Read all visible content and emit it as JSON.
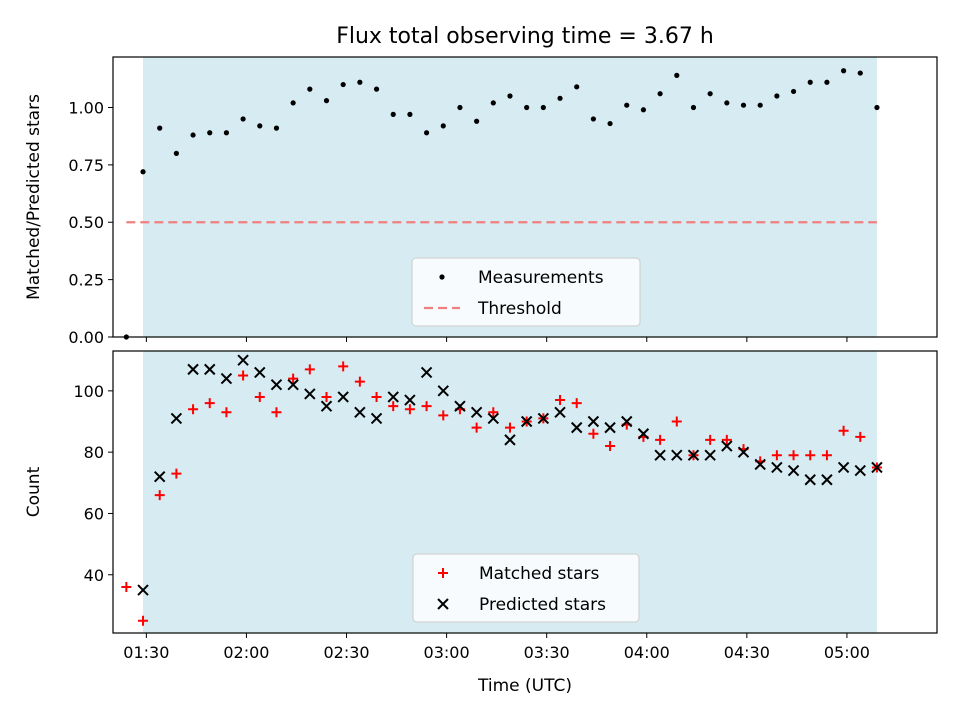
{
  "chart_data": {
    "title": "Flux total observing time = 3.67 h",
    "xlabel": "Time (UTC)",
    "x_range": [
      "01:20",
      "05:27"
    ],
    "x_ticks": [
      "01:30",
      "02:00",
      "02:30",
      "03:00",
      "03:30",
      "04:00",
      "04:30",
      "05:00"
    ],
    "shaded_interval": [
      "01:29",
      "05:09"
    ],
    "shade_color": "#add8e6",
    "panels": [
      {
        "type": "scatter",
        "ylabel": "Matched/Predicted stars",
        "ylim": [
          0.0,
          1.22
        ],
        "y_ticks": [
          "0.00",
          "0.25",
          "0.50",
          "0.75",
          "1.00"
        ],
        "legend_position": "bottom-center",
        "series": [
          {
            "name": "Measurements",
            "marker": "dot",
            "color": "#000000",
            "points": [
              [
                "01:24",
                0.0
              ],
              [
                "01:29",
                0.72
              ],
              [
                "01:34",
                0.91
              ],
              [
                "01:39",
                0.8
              ],
              [
                "01:44",
                0.88
              ],
              [
                "01:49",
                0.89
              ],
              [
                "01:54",
                0.89
              ],
              [
                "01:59",
                0.95
              ],
              [
                "02:04",
                0.92
              ],
              [
                "02:09",
                0.91
              ],
              [
                "02:14",
                1.02
              ],
              [
                "02:19",
                1.08
              ],
              [
                "02:24",
                1.03
              ],
              [
                "02:29",
                1.1
              ],
              [
                "02:34",
                1.11
              ],
              [
                "02:39",
                1.08
              ],
              [
                "02:44",
                0.97
              ],
              [
                "02:49",
                0.97
              ],
              [
                "02:54",
                0.89
              ],
              [
                "02:59",
                0.92
              ],
              [
                "03:04",
                1.0
              ],
              [
                "03:09",
                0.94
              ],
              [
                "03:14",
                1.02
              ],
              [
                "03:19",
                1.05
              ],
              [
                "03:24",
                1.0
              ],
              [
                "03:29",
                1.0
              ],
              [
                "03:34",
                1.04
              ],
              [
                "03:39",
                1.09
              ],
              [
                "03:44",
                0.95
              ],
              [
                "03:49",
                0.93
              ],
              [
                "03:54",
                1.01
              ],
              [
                "03:59",
                0.99
              ],
              [
                "04:04",
                1.06
              ],
              [
                "04:09",
                1.14
              ],
              [
                "04:14",
                1.0
              ],
              [
                "04:19",
                1.06
              ],
              [
                "04:24",
                1.02
              ],
              [
                "04:29",
                1.01
              ],
              [
                "04:34",
                1.01
              ],
              [
                "04:39",
                1.05
              ],
              [
                "04:44",
                1.07
              ],
              [
                "04:49",
                1.11
              ],
              [
                "04:54",
                1.11
              ],
              [
                "04:59",
                1.16
              ],
              [
                "05:04",
                1.15
              ],
              [
                "05:09",
                1.0
              ]
            ]
          },
          {
            "name": "Threshold",
            "marker": "dashed-line",
            "color": "#f08080",
            "points": [
              [
                "01:24",
                0.5
              ],
              [
                "05:09",
                0.5
              ]
            ]
          }
        ]
      },
      {
        "type": "scatter",
        "ylabel": "Count",
        "ylim": [
          21,
          113
        ],
        "y_ticks": [
          "40",
          "60",
          "80",
          "100"
        ],
        "legend_position": "bottom-center",
        "series": [
          {
            "name": "Matched stars",
            "marker": "plus",
            "color": "#ff0000",
            "points": [
              [
                "01:24",
                36
              ],
              [
                "01:29",
                25
              ],
              [
                "01:34",
                66
              ],
              [
                "01:39",
                73
              ],
              [
                "01:44",
                94
              ],
              [
                "01:49",
                96
              ],
              [
                "01:54",
                93
              ],
              [
                "01:59",
                105
              ],
              [
                "02:04",
                98
              ],
              [
                "02:09",
                93
              ],
              [
                "02:14",
                104
              ],
              [
                "02:19",
                107
              ],
              [
                "02:24",
                98
              ],
              [
                "02:29",
                108
              ],
              [
                "02:34",
                103
              ],
              [
                "02:39",
                98
              ],
              [
                "02:44",
                95
              ],
              [
                "02:49",
                94
              ],
              [
                "02:54",
                95
              ],
              [
                "02:59",
                92
              ],
              [
                "03:04",
                94
              ],
              [
                "03:09",
                88
              ],
              [
                "03:14",
                93
              ],
              [
                "03:19",
                88
              ],
              [
                "03:24",
                90
              ],
              [
                "03:29",
                91
              ],
              [
                "03:34",
                97
              ],
              [
                "03:39",
                96
              ],
              [
                "03:44",
                86
              ],
              [
                "03:49",
                82
              ],
              [
                "03:54",
                89
              ],
              [
                "03:59",
                85
              ],
              [
                "04:04",
                84
              ],
              [
                "04:09",
                90
              ],
              [
                "04:14",
                79
              ],
              [
                "04:19",
                84
              ],
              [
                "04:24",
                84
              ],
              [
                "04:29",
                81
              ],
              [
                "04:34",
                77
              ],
              [
                "04:39",
                79
              ],
              [
                "04:44",
                79
              ],
              [
                "04:49",
                79
              ],
              [
                "04:54",
                79
              ],
              [
                "04:59",
                87
              ],
              [
                "05:04",
                85
              ],
              [
                "05:09",
                75
              ]
            ]
          },
          {
            "name": "Predicted stars",
            "marker": "x",
            "color": "#000000",
            "points": [
              [
                "01:29",
                35
              ],
              [
                "01:34",
                72
              ],
              [
                "01:39",
                91
              ],
              [
                "01:44",
                107
              ],
              [
                "01:49",
                107
              ],
              [
                "01:54",
                104
              ],
              [
                "01:59",
                110
              ],
              [
                "02:04",
                106
              ],
              [
                "02:09",
                102
              ],
              [
                "02:14",
                102
              ],
              [
                "02:19",
                99
              ],
              [
                "02:24",
                95
              ],
              [
                "02:29",
                98
              ],
              [
                "02:34",
                93
              ],
              [
                "02:39",
                91
              ],
              [
                "02:44",
                98
              ],
              [
                "02:49",
                97
              ],
              [
                "02:54",
                106
              ],
              [
                "02:59",
                100
              ],
              [
                "03:04",
                95
              ],
              [
                "03:09",
                93
              ],
              [
                "03:14",
                91
              ],
              [
                "03:19",
                84
              ],
              [
                "03:24",
                90
              ],
              [
                "03:29",
                91
              ],
              [
                "03:34",
                93
              ],
              [
                "03:39",
                88
              ],
              [
                "03:44",
                90
              ],
              [
                "03:49",
                88
              ],
              [
                "03:54",
                90
              ],
              [
                "03:59",
                86
              ],
              [
                "04:04",
                79
              ],
              [
                "04:09",
                79
              ],
              [
                "04:14",
                79
              ],
              [
                "04:19",
                79
              ],
              [
                "04:24",
                82
              ],
              [
                "04:29",
                80
              ],
              [
                "04:34",
                76
              ],
              [
                "04:39",
                75
              ],
              [
                "04:44",
                74
              ],
              [
                "04:49",
                71
              ],
              [
                "04:54",
                71
              ],
              [
                "04:59",
                75
              ],
              [
                "05:04",
                74
              ],
              [
                "05:09",
                75
              ]
            ]
          }
        ]
      }
    ]
  }
}
